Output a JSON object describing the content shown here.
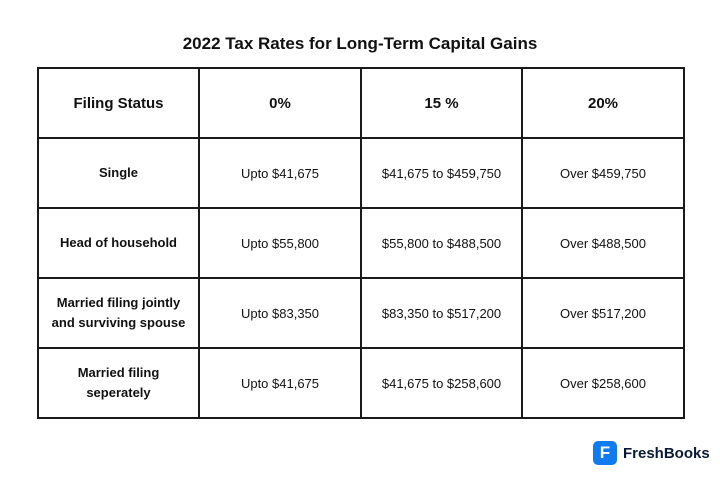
{
  "title": "2022 Tax Rates for Long-Term Capital Gains",
  "table": {
    "header": [
      "Filing Status",
      "0%",
      "15 %",
      "20%"
    ],
    "rows": [
      [
        "Single",
        "Upto $41,675",
        "$41,675 to $459,750",
        "Over $459,750"
      ],
      [
        "Head of household",
        "Upto $55,800",
        "$55,800 to $488,500",
        "Over $488,500"
      ],
      [
        "Married filing jointly and surviving spouse",
        "Upto $83,350",
        "$83,350 to $517,200",
        "Over $517,200"
      ],
      [
        "Married filing seperately",
        "Upto $41,675",
        "$41,675 to $258,600",
        "Over $258,600"
      ]
    ]
  },
  "logo": {
    "text": "FreshBooks"
  }
}
